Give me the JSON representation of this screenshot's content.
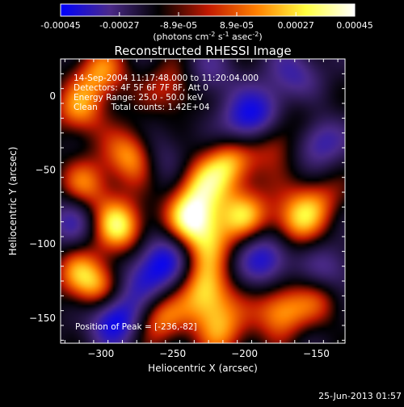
{
  "colorbar": {
    "ticks": [
      {
        "value": -0.00045,
        "label": "-0.00045"
      },
      {
        "value": -0.00027,
        "label": "-0.00027"
      },
      {
        "value": -8.9e-05,
        "label": "-8.9e-05"
      },
      {
        "value": 8.9e-05,
        "label": "8.9e-05"
      },
      {
        "value": 0.00027,
        "label": "0.00027"
      },
      {
        "value": 0.00045,
        "label": "0.00045"
      }
    ],
    "range": [
      -0.00045,
      0.00045
    ],
    "units_prefix": "(photons cm",
    "units_exp1": "-2",
    "units_mid": " s",
    "units_exp2": "-1",
    "units_mid2": " asec",
    "units_exp3": "-2",
    "units_suffix": ")"
  },
  "chart_data": {
    "type": "heatmap",
    "title": "Reconstructed RHESSI Image",
    "xlabel": "Heliocentric X (arcsec)",
    "ylabel": "Heliocentric Y (arcsec)",
    "xlim": [
      -328,
      -130
    ],
    "ylim": [
      -167,
      25
    ],
    "xticks": [
      -300,
      -250,
      -200,
      -150
    ],
    "yticks": [
      0,
      -50,
      -100,
      -150
    ],
    "colormap": [
      "#0000ff",
      "#4b2a8a",
      "#000000",
      "#c01800",
      "#ff8000",
      "#ffff40",
      "#ffffff"
    ],
    "hotspots": [
      {
        "x": -287,
        "y": -88,
        "v": 0.85
      },
      {
        "x": -277,
        "y": -40,
        "v": 0.75
      },
      {
        "x": -310,
        "y": -60,
        "v": 0.55
      },
      {
        "x": -236,
        "y": -82,
        "v": 0.9
      },
      {
        "x": -230,
        "y": -60,
        "v": 0.55
      },
      {
        "x": -225,
        "y": -100,
        "v": 0.5
      },
      {
        "x": -210,
        "y": -45,
        "v": 0.7
      },
      {
        "x": -200,
        "y": -80,
        "v": 0.65
      },
      {
        "x": -180,
        "y": -30,
        "v": 0.55
      },
      {
        "x": -165,
        "y": -85,
        "v": 0.6
      },
      {
        "x": -150,
        "y": -70,
        "v": 0.45
      },
      {
        "x": -225,
        "y": -140,
        "v": 0.55
      },
      {
        "x": -260,
        "y": -150,
        "v": 0.6
      },
      {
        "x": -175,
        "y": -145,
        "v": 0.7
      },
      {
        "x": -215,
        "y": -160,
        "v": 0.5
      },
      {
        "x": -145,
        "y": -135,
        "v": 0.45
      },
      {
        "x": -315,
        "y": -10,
        "v": 0.55
      },
      {
        "x": -300,
        "y": 15,
        "v": 0.6
      },
      {
        "x": -250,
        "y": 5,
        "v": 0.45
      },
      {
        "x": -230,
        "y": -125,
        "v": 0.4
      },
      {
        "x": -315,
        "y": -120,
        "v": 0.5
      },
      {
        "x": -300,
        "y": -130,
        "v": 0.55
      },
      {
        "x": -160,
        "y": -15,
        "v": 0.3
      },
      {
        "x": -290,
        "y": -150,
        "v": -0.9
      },
      {
        "x": -200,
        "y": -20,
        "v": -0.6
      },
      {
        "x": -150,
        "y": -30,
        "v": -0.65
      },
      {
        "x": -185,
        "y": -110,
        "v": -0.7
      },
      {
        "x": -255,
        "y": -110,
        "v": -0.6
      },
      {
        "x": -140,
        "y": -120,
        "v": -0.5
      },
      {
        "x": -185,
        "y": -10,
        "v": -0.5
      },
      {
        "x": -260,
        "y": -40,
        "v": -0.4
      },
      {
        "x": -320,
        "y": -85,
        "v": -0.45
      },
      {
        "x": -270,
        "y": -125,
        "v": -0.55
      },
      {
        "x": -165,
        "y": 15,
        "v": -0.45
      },
      {
        "x": -225,
        "y": 15,
        "v": -0.35
      }
    ]
  },
  "annotations": {
    "time_range": "14-Sep-2004 11:17:48.000 to 11:20:04.000",
    "detectors": "Detectors: 4F 5F 6F 7F 8F, Att 0",
    "energy": "Energy Range: 25.0 - 50.0 keV",
    "clean": "Clean     Total counts: 1.42E+04",
    "peak": "Position of Peak = [-236,-82]"
  },
  "footer_date": "25-Jun-2013 01:57"
}
